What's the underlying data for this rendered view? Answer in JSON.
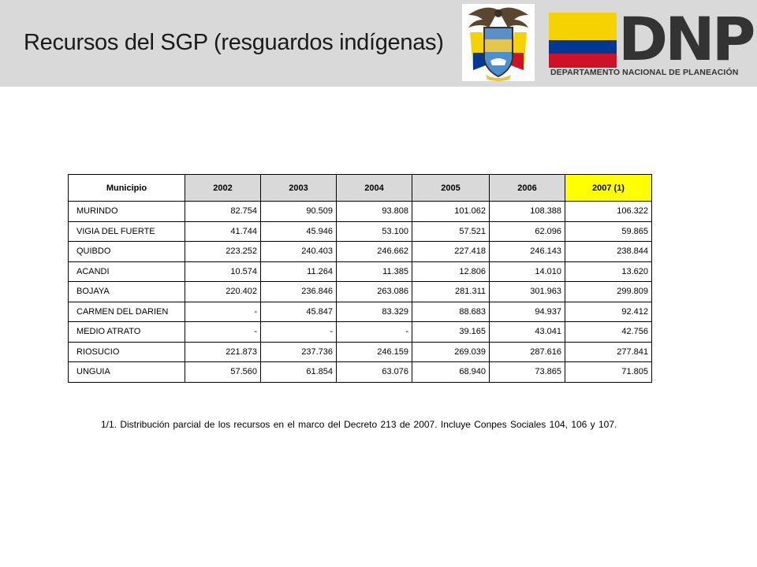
{
  "header": {
    "title": "Recursos del SGP (resguardos indígenas)",
    "logo_text": "DNP",
    "logo_subtitle": "DEPARTAMENTO NACIONAL DE PLANEACIÓN",
    "colors": {
      "background": "#d9d9d9",
      "flag_yellow": "#f6d200",
      "flag_blue": "#003893",
      "flag_red": "#ce1126"
    }
  },
  "table": {
    "columns": [
      "Municipio",
      "2002",
      "2003",
      "2004",
      "2005",
      "2006",
      "2007 (1)"
    ],
    "highlight_color": "#ffff00",
    "rows": [
      [
        "MURINDO",
        "82.754",
        "90.509",
        "93.808",
        "101.062",
        "108.388",
        "106.322"
      ],
      [
        "VIGIA DEL FUERTE",
        "41.744",
        "45.946",
        "53.100",
        "57.521",
        "62.096",
        "59.865"
      ],
      [
        "QUIBDO",
        "223.252",
        "240.403",
        "246.662",
        "227.418",
        "246.143",
        "238.844"
      ],
      [
        "ACANDI",
        "10.574",
        "11.264",
        "11.385",
        "12.806",
        "14.010",
        "13.620"
      ],
      [
        "BOJAYA",
        "220.402",
        "236.846",
        "263.086",
        "281.311",
        "301.963",
        "299.809"
      ],
      [
        "CARMEN DEL DARIEN",
        "-",
        "45.847",
        "83.329",
        "88.683",
        "94.937",
        "92.412"
      ],
      [
        "MEDIO ATRATO",
        "-",
        "-",
        "-",
        "39.165",
        "43.041",
        "42.756"
      ],
      [
        "RIOSUCIO",
        "221.873",
        "237.736",
        "246.159",
        "269.039",
        "287.616",
        "277.841"
      ],
      [
        "UNGUIA",
        "57.560",
        "61.854",
        "63.076",
        "68.940",
        "73.865",
        "71.805"
      ]
    ]
  },
  "note": "1/1. Distribución parcial de los recursos en el marco del Decreto 213 de 2007. Incluye Conpes Sociales 104, 106 y 107."
}
